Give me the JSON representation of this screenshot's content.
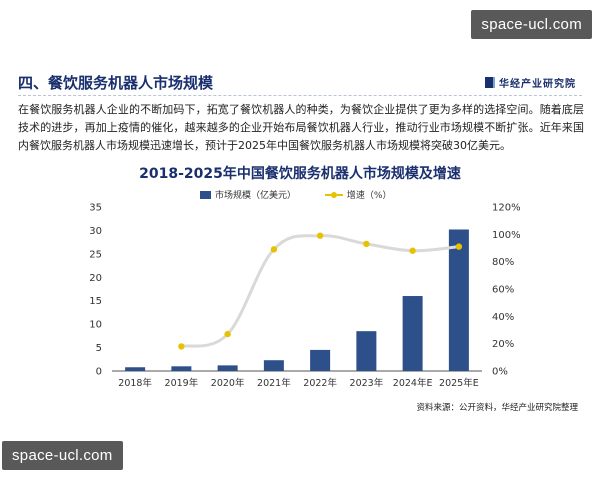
{
  "watermark_text": "space-ucl.com",
  "section": {
    "title": "四、餐饮服务机器人市场规模",
    "brand": "华经产业研究院"
  },
  "paragraph": "在餐饮服务机器人企业的不断加码下，拓宽了餐饮机器人的种类，为餐饮企业提供了更为多样的选择空间。随着底层技术的进步，再加上疫情的催化，越来越多的企业开始布局餐饮机器人行业，推动行业市场规模不断扩张。近年来国内餐饮服务机器人市场规模迅速增长，预计于2025年中国餐饮服务机器人市场规模将突破30亿美元。",
  "chart_data": {
    "type": "bar",
    "title": "2018-2025年中国餐饮服务机器人市场规模及增速",
    "categories": [
      "2018年",
      "2019年",
      "2020年",
      "2021年",
      "2022年",
      "2023年",
      "2024年E",
      "2025年E"
    ],
    "series": [
      {
        "name": "市场规模（亿美元）",
        "type": "bar",
        "axis": "left",
        "values": [
          0.8,
          1.0,
          1.2,
          2.3,
          4.5,
          8.5,
          16.0,
          30.2
        ]
      },
      {
        "name": "增速（%）",
        "type": "line",
        "axis": "right",
        "values": [
          null,
          18,
          27,
          89,
          99,
          93,
          88,
          91
        ]
      }
    ],
    "ylim": [
      0,
      35
    ],
    "y_ticks": [
      "0",
      "5",
      "10",
      "15",
      "20",
      "25",
      "30",
      "35"
    ],
    "y2lim": [
      0,
      120
    ],
    "y2_ticks": [
      "0%",
      "20%",
      "40%",
      "60%",
      "80%",
      "100%",
      "120%"
    ],
    "colors": {
      "bar": "#2d4f8a",
      "line": "#d9d9d9",
      "marker": "#e6c200"
    },
    "grid": false,
    "legend_position": "top-center"
  },
  "source": "资料来源：公开资料，华经产业研究院整理"
}
